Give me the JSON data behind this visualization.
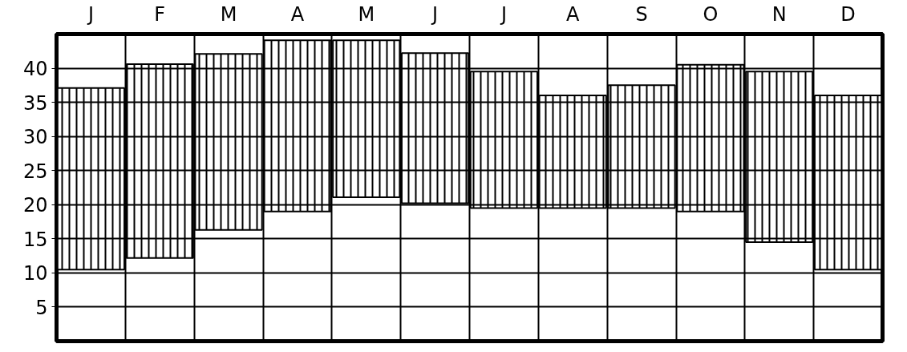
{
  "chart_data": {
    "type": "bar",
    "categories": [
      "J",
      "F",
      "M",
      "A",
      "M",
      "J",
      "J",
      "A",
      "S",
      "O",
      "N",
      "D"
    ],
    "base": [
      10.5,
      12.2,
      16.3,
      19.0,
      21.1,
      20.2,
      19.5,
      19.5,
      19.5,
      19.0,
      14.5,
      10.5
    ],
    "values": [
      26.6,
      28.4,
      25.8,
      25.1,
      23.0,
      22.0,
      20.0,
      16.5,
      18.0,
      21.5,
      25.0,
      25.5
    ],
    "color": "#000000",
    "ylim": [
      0,
      45
    ],
    "yticks": [
      5,
      10,
      15,
      20,
      25,
      30,
      35,
      40
    ],
    "grid": true
  }
}
